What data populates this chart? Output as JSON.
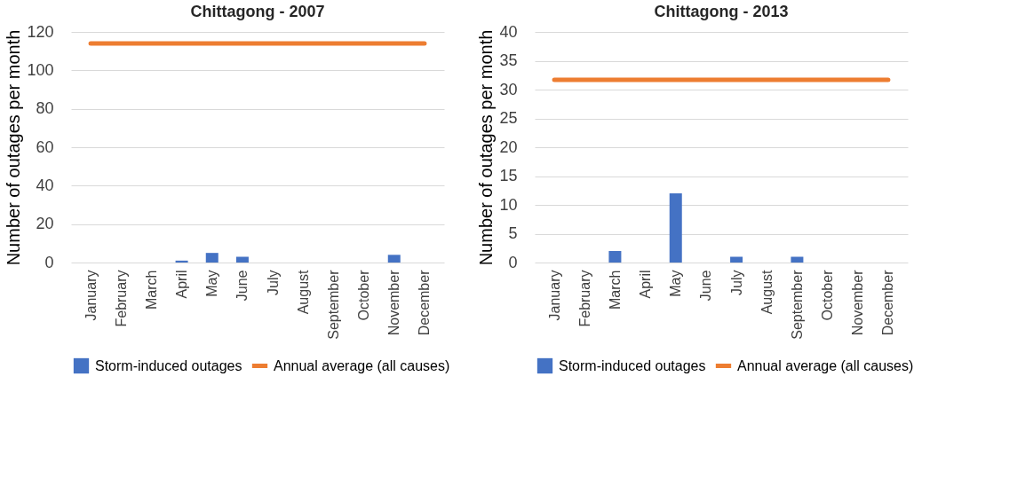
{
  "chart_data": [
    {
      "type": "bar",
      "title": "Chittagong - 2007",
      "ylabel": "Number of outages per month",
      "categories": [
        "January",
        "February",
        "March",
        "April",
        "May",
        "June",
        "July",
        "August",
        "September",
        "October",
        "November",
        "December"
      ],
      "series": [
        {
          "name": "Storm-induced outages",
          "color": "#4472c4",
          "values": [
            0,
            0,
            0,
            1,
            5,
            3,
            0,
            0,
            0,
            0,
            4,
            0
          ]
        },
        {
          "name": "Annual average (all causes)",
          "type": "line",
          "color": "#ed7d31",
          "values": [
            114,
            114,
            114,
            114,
            114,
            114,
            114,
            114,
            114,
            114,
            114,
            114
          ]
        }
      ],
      "ylim": [
        0,
        120
      ],
      "yticks": [
        0,
        20,
        40,
        60,
        80,
        100,
        120
      ],
      "grid": "y",
      "legend": "bottom",
      "marker": "none"
    },
    {
      "type": "bar",
      "title": "Chittagong - 2013",
      "ylabel": "Number of outages per month",
      "categories": [
        "January",
        "February",
        "March",
        "April",
        "May",
        "June",
        "July",
        "August",
        "September",
        "October",
        "November",
        "December"
      ],
      "series": [
        {
          "name": "Storm-induced outages",
          "color": "#4472c4",
          "values": [
            0,
            0,
            2,
            0,
            12,
            0,
            1,
            0,
            1,
            0,
            0,
            0
          ]
        },
        {
          "name": "Annual average (all causes)",
          "type": "line",
          "color": "#ed7d31",
          "values": [
            31.7,
            31.7,
            31.7,
            31.7,
            31.7,
            31.7,
            31.7,
            31.7,
            31.7,
            31.7,
            31.7,
            31.7
          ]
        }
      ],
      "ylim": [
        0,
        40
      ],
      "yticks": [
        0,
        5,
        10,
        15,
        20,
        25,
        30,
        35,
        40
      ],
      "grid": "y",
      "legend": "bottom",
      "marker": "none"
    }
  ]
}
